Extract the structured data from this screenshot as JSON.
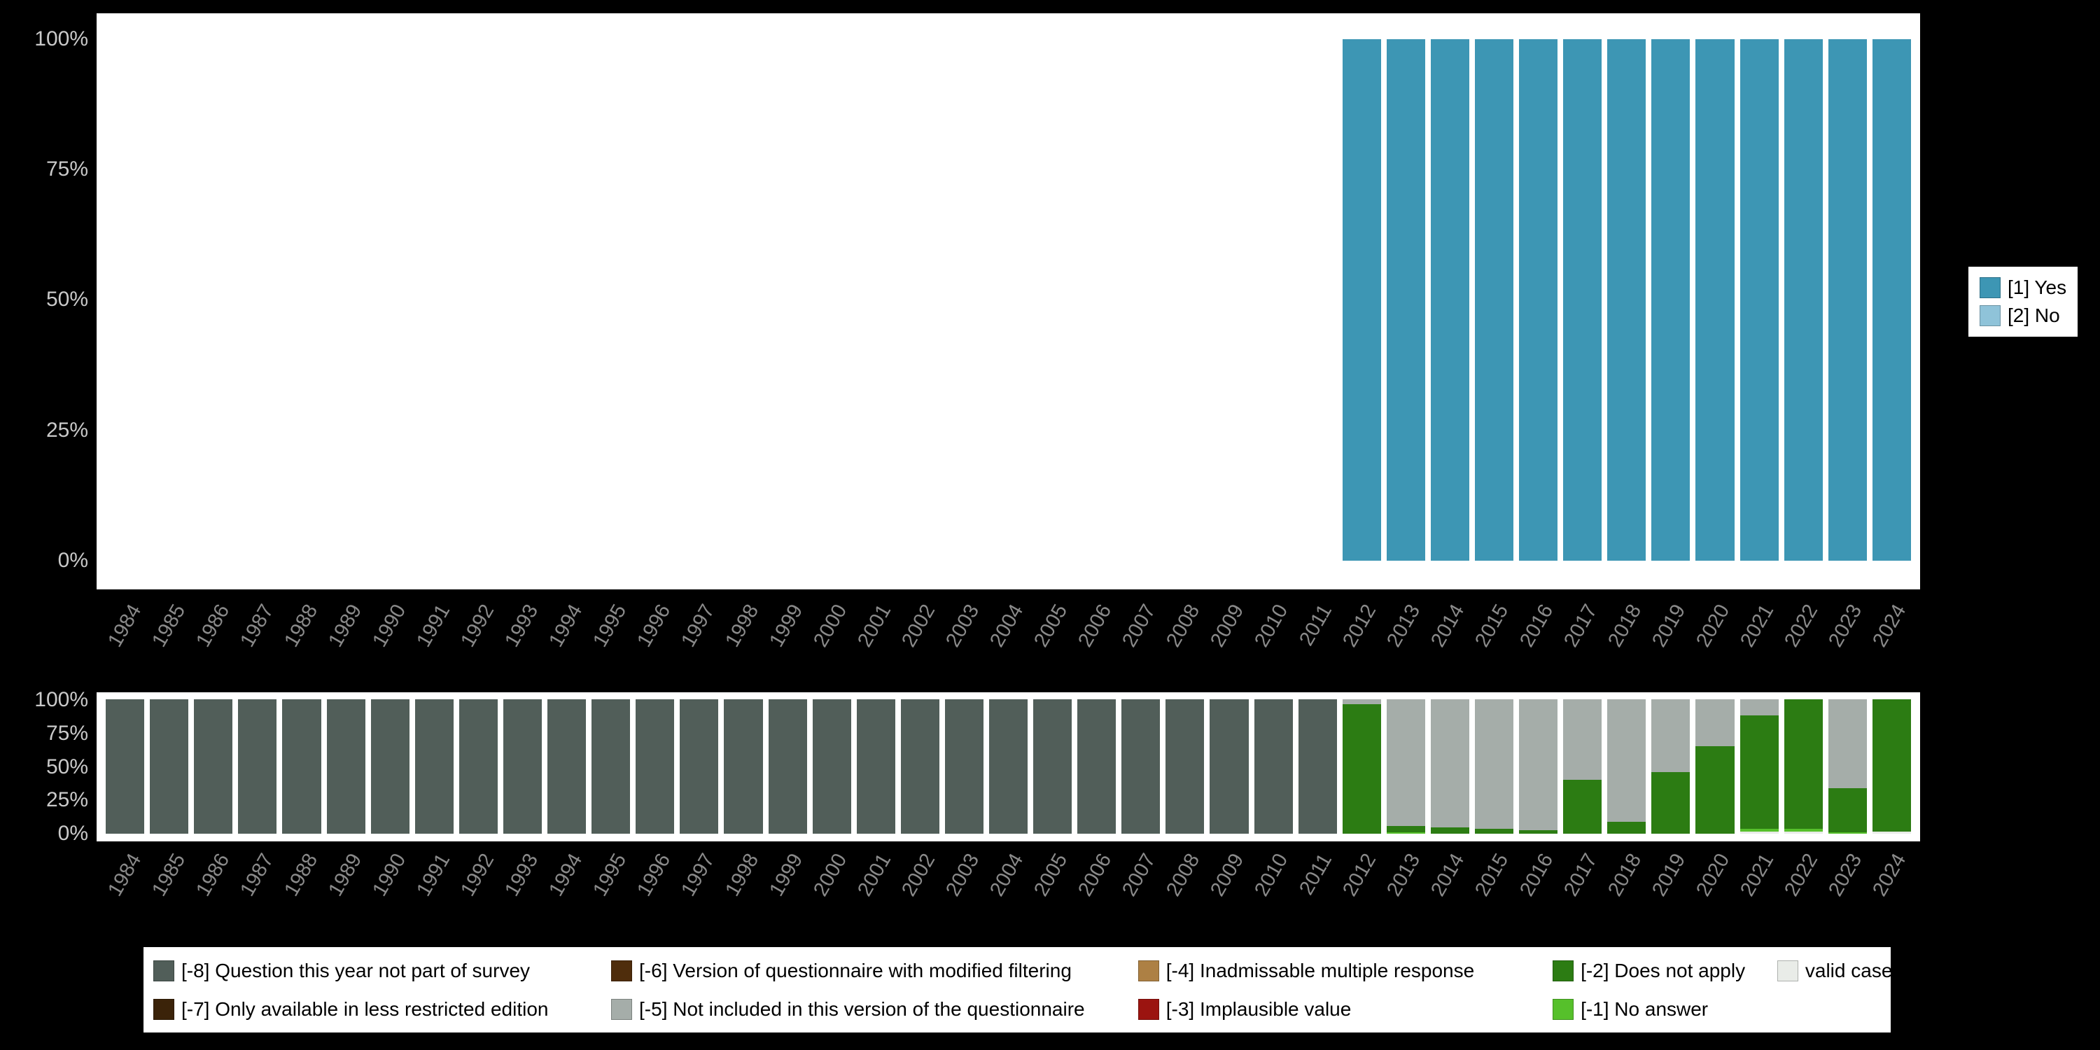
{
  "colors": {
    "background": "#000000",
    "plot_background": "#ffffff",
    "y_tick_text": "#c9c9c9",
    "x_tick_text": "#8a8a8a",
    "legend_background": "#ffffff",
    "legend_text": "#000000"
  },
  "top_legend": {
    "items": [
      {
        "label": "[1] Yes",
        "color": "#3d96b4"
      },
      {
        "label": "[2] No",
        "color": "#8fc3d9"
      }
    ]
  },
  "bottom_legend": {
    "items": [
      {
        "label": "[-8] Question this year not part of survey",
        "color": "#515e59"
      },
      {
        "label": "[-7] Only available in less restricted edition",
        "color": "#3b2309"
      },
      {
        "label": "[-6] Version of questionnaire with modified filtering",
        "color": "#4f2d0c"
      },
      {
        "label": "[-5] Not included in this version of the questionnaire",
        "color": "#a5ada9"
      },
      {
        "label": "[-4] Inadmissable multiple response",
        "color": "#ad8044"
      },
      {
        "label": "[-3] Implausible value",
        "color": "#9b1410"
      },
      {
        "label": "[-2] Does not apply",
        "color": "#2c7c13"
      },
      {
        "label": "[-1] No answer",
        "color": "#56c02b"
      },
      {
        "label": "valid cases",
        "color": "#e9ece8"
      }
    ]
  },
  "chart_data": [
    {
      "type": "bar",
      "stacked": true,
      "title": "",
      "xlabel": "",
      "ylabel": "",
      "ylim": [
        0,
        100
      ],
      "yticks": [
        "0%",
        "25%",
        "50%",
        "75%",
        "100%"
      ],
      "legend_position": "right",
      "categories": [
        "1984",
        "1985",
        "1986",
        "1987",
        "1988",
        "1989",
        "1990",
        "1991",
        "1992",
        "1993",
        "1994",
        "1995",
        "1996",
        "1997",
        "1998",
        "1999",
        "2000",
        "2001",
        "2002",
        "2003",
        "2004",
        "2005",
        "2006",
        "2007",
        "2008",
        "2009",
        "2010",
        "2011",
        "2012",
        "2013",
        "2014",
        "2015",
        "2016",
        "2017",
        "2018",
        "2019",
        "2020",
        "2021",
        "2022",
        "2023",
        "2024"
      ],
      "series": [
        {
          "name": "[1] Yes",
          "color": "#3d96b4",
          "values_by_year": {
            "2012": 100,
            "2013": 100,
            "2014": 100,
            "2015": 100,
            "2016": 100,
            "2017": 100,
            "2018": 100,
            "2019": 100,
            "2020": 100,
            "2021": 100,
            "2022": 100,
            "2023": 100,
            "2024": 100
          }
        },
        {
          "name": "[2] No",
          "color": "#8fc3d9",
          "values_by_year": {}
        }
      ]
    },
    {
      "type": "bar",
      "stacked": true,
      "title": "",
      "xlabel": "",
      "ylabel": "",
      "ylim": [
        0,
        100
      ],
      "yticks": [
        "0%",
        "25%",
        "50%",
        "75%",
        "100%"
      ],
      "legend_position": "bottom",
      "categories": [
        "1984",
        "1985",
        "1986",
        "1987",
        "1988",
        "1989",
        "1990",
        "1991",
        "1992",
        "1993",
        "1994",
        "1995",
        "1996",
        "1997",
        "1998",
        "1999",
        "2000",
        "2001",
        "2002",
        "2003",
        "2004",
        "2005",
        "2006",
        "2007",
        "2008",
        "2009",
        "2010",
        "2011",
        "2012",
        "2013",
        "2014",
        "2015",
        "2016",
        "2017",
        "2018",
        "2019",
        "2020",
        "2021",
        "2022",
        "2023",
        "2024"
      ],
      "series": [
        {
          "name": "valid cases",
          "color": "#e9ece8",
          "values_by_year": {
            "2021": 2,
            "2022": 2,
            "2024": 2
          }
        },
        {
          "name": "[-1] No answer",
          "color": "#56c02b",
          "values_by_year": {
            "2013": 1,
            "2021": 2,
            "2022": 2,
            "2023": 1
          }
        },
        {
          "name": "[-2] Does not apply",
          "color": "#2c7c13",
          "values_by_year": {
            "2012": 96,
            "2013": 5,
            "2014": 5,
            "2015": 4,
            "2016": 3,
            "2017": 40,
            "2018": 9,
            "2019": 46,
            "2020": 65,
            "2021": 84,
            "2022": 96,
            "2023": 33,
            "2024": 98
          }
        },
        {
          "name": "[-5] Not included in this version of the questionnaire",
          "color": "#a5ada9",
          "values_by_year": {
            "2012": 4,
            "2013": 94,
            "2014": 95,
            "2015": 96,
            "2016": 97,
            "2017": 60,
            "2018": 91,
            "2019": 54,
            "2020": 35,
            "2021": 12,
            "2023": 66
          }
        },
        {
          "name": "[-8] Question this year not part of survey",
          "color": "#515e59",
          "values_by_year": {
            "1984": 100,
            "1985": 100,
            "1986": 100,
            "1987": 100,
            "1988": 100,
            "1989": 100,
            "1990": 100,
            "1991": 100,
            "1992": 100,
            "1993": 100,
            "1994": 100,
            "1995": 100,
            "1996": 100,
            "1997": 100,
            "1998": 100,
            "1999": 100,
            "2000": 100,
            "2001": 100,
            "2002": 100,
            "2003": 100,
            "2004": 100,
            "2005": 100,
            "2006": 100,
            "2007": 100,
            "2008": 100,
            "2009": 100,
            "2010": 100,
            "2011": 100
          }
        }
      ]
    }
  ]
}
